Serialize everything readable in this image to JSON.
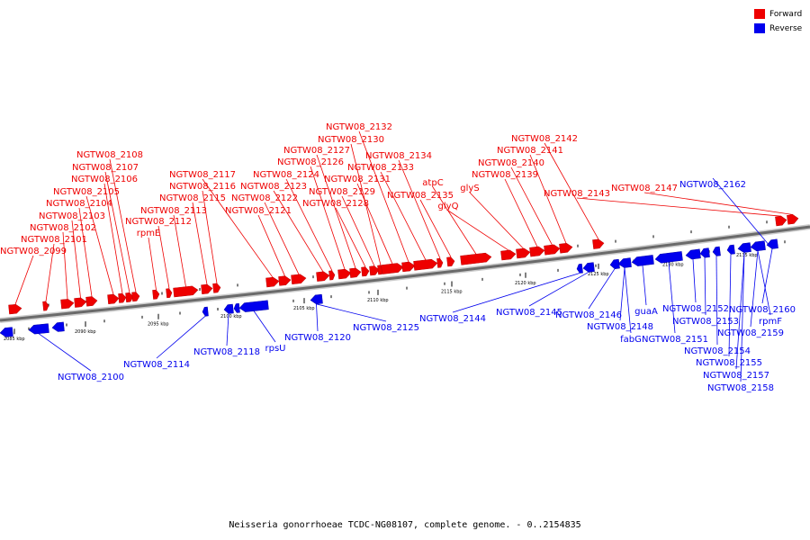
{
  "legend": {
    "forward": {
      "label": "Forward",
      "color": "#ee0000"
    },
    "reverse": {
      "label": "Reverse",
      "color": "#0000ee"
    }
  },
  "caption": "Neisseria gonorrhoeae TCDC-NG08107, complete genome. - 0..2154835",
  "scale_ticks": [
    "2085 kbp",
    "2090 kbp",
    "2095 kbp",
    "2100 kbp",
    "2105 kbp",
    "2110 kbp",
    "2115 kbp",
    "2120 kbp",
    "2125 kbp",
    "2130 kbp",
    "2135 kbp"
  ],
  "forward_labels": [
    "NGTW08_2099",
    "NGTW08_2101",
    "NGTW08_2102",
    "NGTW08_2103",
    "NGTW08_2104",
    "NGTW08_2105",
    "NGTW08_2106",
    "NGTW08_2107",
    "NGTW08_2108",
    "rpmE",
    "NGTW08_2112",
    "NGTW08_2113",
    "NGTW08_2115",
    "NGTW08_2116",
    "NGTW08_2117",
    "NGTW08_2121",
    "NGTW08_2122",
    "NGTW08_2123",
    "NGTW08_2124",
    "NGTW08_2126",
    "NGTW08_2127",
    "NGTW08_2128",
    "NGTW08_2129",
    "NGTW08_2130",
    "NGTW08_2131",
    "NGTW08_2132",
    "NGTW08_2133",
    "NGTW08_2134",
    "NGTW08_2135",
    "atpC",
    "glyQ",
    "glyS",
    "NGTW08_2139",
    "NGTW08_2140",
    "NGTW08_2141",
    "NGTW08_2142",
    "NGTW08_2143",
    "NGTW08_2147"
  ],
  "reverse_labels": [
    "NGTW08_2100",
    "NGTW08_2114",
    "NGTW08_2118",
    "rpsU",
    "NGTW08_2120",
    "NGTW08_2125",
    "NGTW08_2144",
    "NGTW08_2145",
    "NGTW08_2146",
    "NGTW08_2148",
    "fabG",
    "guaA",
    "NGTW08_2151",
    "NGTW08_2152",
    "NGTW08_2153",
    "NGTW08_2154",
    "NGTW08_2155",
    "NGTW08_2157",
    "NGTW08_2158",
    "NGTW08_2159",
    "rpmF",
    "NGTW08_2160",
    "NGTW08_2162"
  ]
}
